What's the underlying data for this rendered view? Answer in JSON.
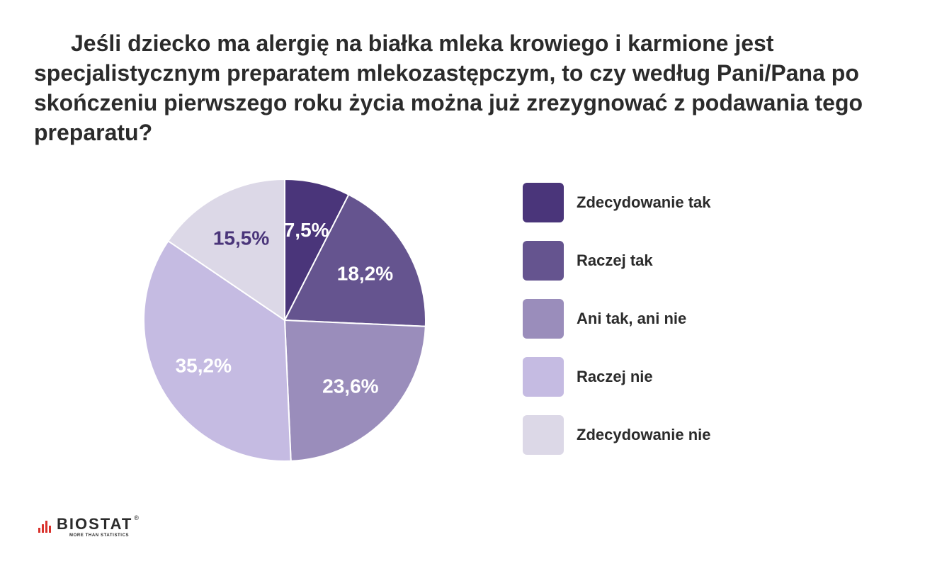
{
  "title": "Jeśli dziecko ma alergię na białka mleka krowiego i karmione jest specjalistycznym preparatem mlekozastępczym, to czy według Pani/Pana po skończeniu pierwszego roku życia można już zrezygnować z podawania tego preparatu?",
  "chart_data": {
    "type": "pie",
    "title": "Jeśli dziecko ma alergię na białka mleka krowiego i karmione jest specjalistycznym preparatem mlekozastępczym, to czy według Pani/Pana po skończeniu pierwszego roku życia można już zrezygnować z podawania tego preparatu?",
    "categories": [
      "Zdecydowanie tak",
      "Raczej tak",
      "Ani tak, ani nie",
      "Raczej nie",
      "Zdecydowanie nie"
    ],
    "values": [
      7.5,
      18.2,
      23.6,
      35.2,
      15.5
    ],
    "value_labels": [
      "7,5%",
      "18,2%",
      "23,6%",
      "35,2%",
      "15,5%"
    ],
    "colors": [
      "#4a357a",
      "#65548f",
      "#9a8dbb",
      "#c5bbe2",
      "#dcd8e7"
    ],
    "label_colors": [
      "#ffffff",
      "#ffffff",
      "#ffffff",
      "#ffffff",
      "#4a357a"
    ],
    "legend_position": "right",
    "start": "top",
    "direction": "clockwise"
  },
  "logo": {
    "brand": "BIOSTAT",
    "tagline": "MORE THAN STATISTICS",
    "reg": "®"
  }
}
